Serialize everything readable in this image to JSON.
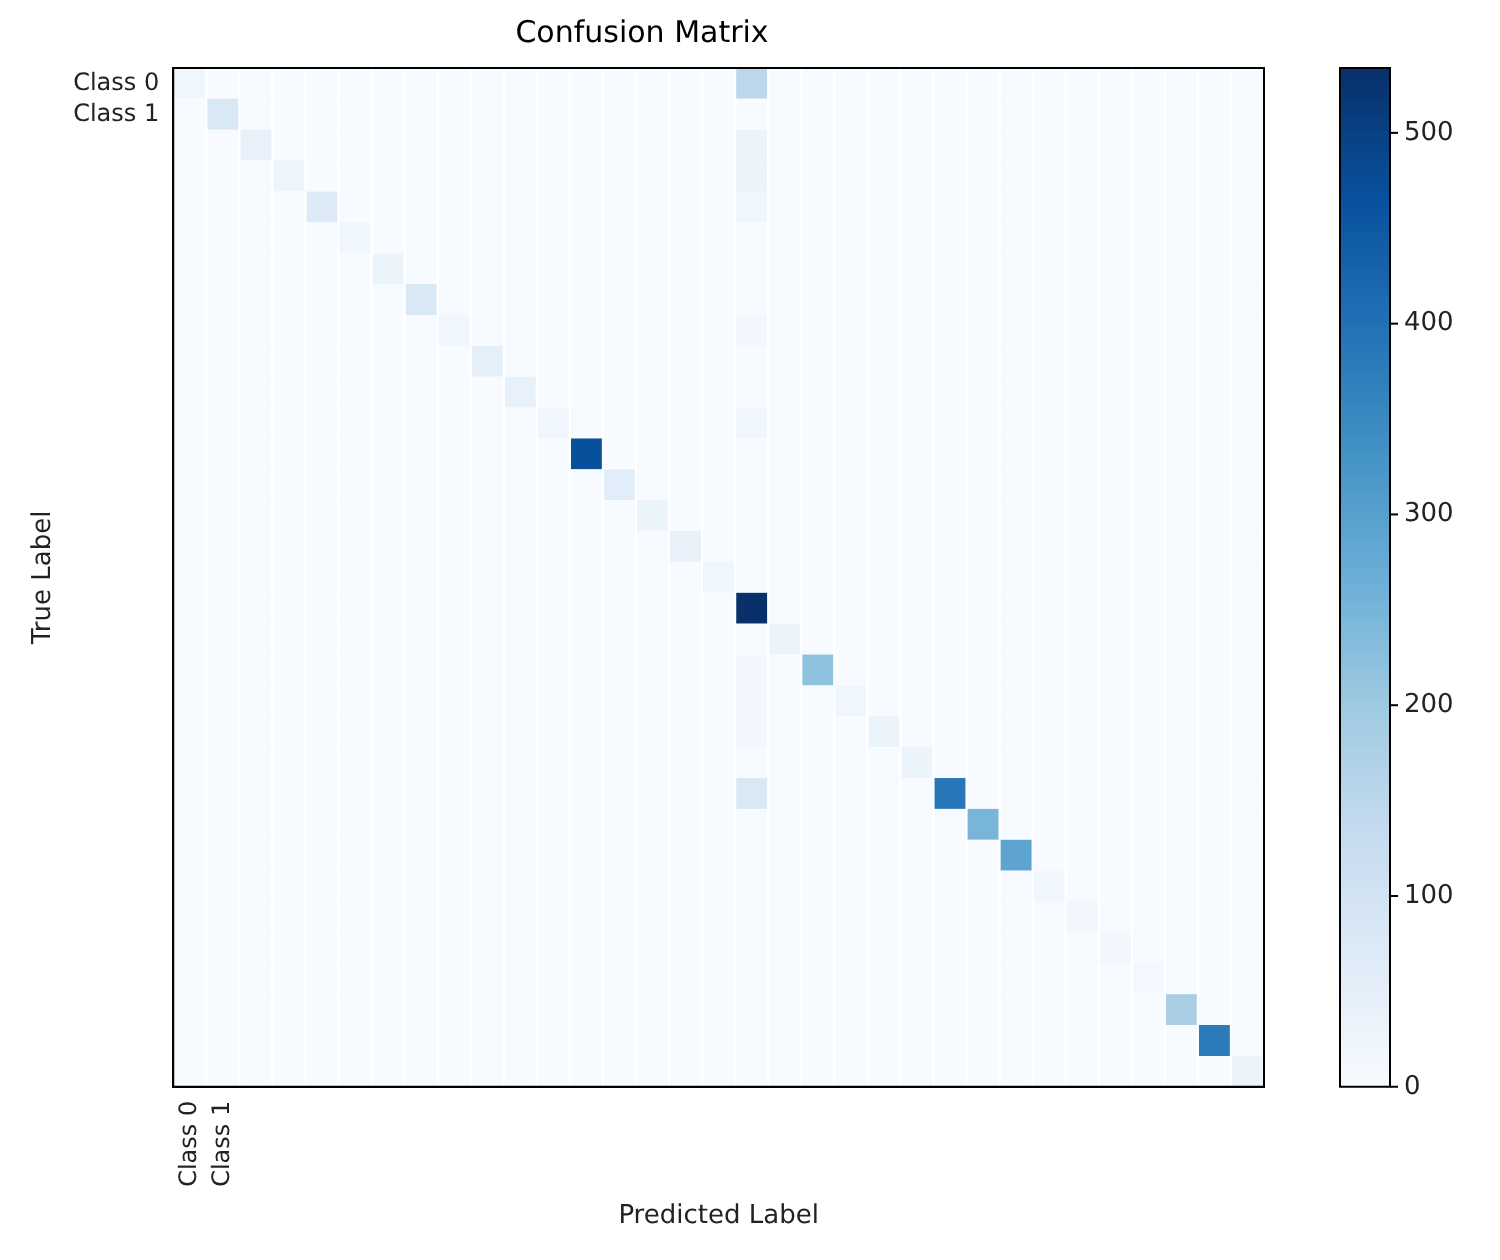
{
  "chart_data": {
    "type": "heatmap",
    "title": "Confusion Matrix",
    "xlabel": "Predicted Label",
    "ylabel": "True Label",
    "categories": [
      "Class 0",
      "Class 1",
      null,
      null,
      null,
      null,
      null,
      null,
      null,
      null,
      null,
      null,
      null,
      null,
      null,
      null,
      null,
      null,
      null,
      null,
      null,
      null,
      null,
      null,
      null,
      null,
      null,
      null,
      null,
      null,
      null,
      null,
      null
    ],
    "y_categories": [
      "Class 0",
      "Class 1",
      null,
      null,
      null,
      null,
      null,
      null,
      null,
      null,
      null,
      null,
      null,
      null,
      null,
      null,
      null,
      null,
      null,
      null,
      null,
      null,
      null,
      null,
      null,
      null,
      null,
      null,
      null,
      null,
      null,
      null,
      null
    ],
    "clim": [
      0,
      534
    ],
    "cticks": [
      0,
      100,
      200,
      300,
      400,
      500
    ],
    "cells": [
      [
        20,
        0,
        0,
        0,
        0,
        0,
        0,
        0,
        0,
        0,
        0,
        0,
        0,
        0,
        0,
        0,
        0,
        150,
        0,
        0,
        0,
        0,
        0,
        0,
        0,
        0,
        0,
        0,
        0,
        0,
        0,
        0,
        0
      ],
      [
        0,
        80,
        0,
        0,
        0,
        0,
        0,
        0,
        0,
        0,
        0,
        0,
        0,
        0,
        0,
        0,
        0,
        0,
        0,
        0,
        0,
        0,
        0,
        0,
        0,
        0,
        0,
        0,
        0,
        0,
        0,
        0,
        0
      ],
      [
        0,
        0,
        40,
        0,
        0,
        0,
        0,
        0,
        0,
        0,
        0,
        0,
        0,
        0,
        0,
        0,
        0,
        30,
        0,
        0,
        0,
        0,
        0,
        0,
        0,
        0,
        0,
        0,
        0,
        0,
        0,
        0,
        0
      ],
      [
        0,
        0,
        0,
        25,
        0,
        0,
        0,
        0,
        0,
        0,
        0,
        0,
        0,
        0,
        0,
        0,
        0,
        30,
        0,
        0,
        0,
        0,
        0,
        0,
        0,
        0,
        0,
        0,
        0,
        0,
        0,
        0,
        0
      ],
      [
        0,
        0,
        0,
        0,
        70,
        0,
        0,
        0,
        0,
        0,
        0,
        0,
        0,
        0,
        0,
        0,
        0,
        20,
        0,
        0,
        0,
        0,
        0,
        0,
        0,
        0,
        0,
        0,
        0,
        0,
        0,
        0,
        0
      ],
      [
        0,
        0,
        0,
        0,
        0,
        20,
        0,
        0,
        0,
        0,
        0,
        0,
        0,
        0,
        0,
        0,
        0,
        0,
        0,
        0,
        0,
        0,
        0,
        0,
        0,
        0,
        0,
        0,
        0,
        0,
        0,
        0,
        0
      ],
      [
        0,
        0,
        0,
        0,
        0,
        0,
        30,
        0,
        0,
        0,
        0,
        0,
        0,
        0,
        0,
        0,
        0,
        0,
        0,
        0,
        0,
        0,
        0,
        0,
        0,
        0,
        0,
        0,
        0,
        0,
        0,
        0,
        0
      ],
      [
        0,
        0,
        0,
        0,
        0,
        0,
        0,
        80,
        0,
        0,
        0,
        0,
        0,
        0,
        0,
        0,
        0,
        0,
        0,
        0,
        0,
        0,
        0,
        0,
        0,
        0,
        0,
        0,
        0,
        0,
        0,
        0,
        0
      ],
      [
        0,
        0,
        0,
        0,
        0,
        0,
        0,
        0,
        20,
        0,
        0,
        0,
        0,
        0,
        0,
        0,
        0,
        15,
        0,
        0,
        0,
        0,
        0,
        0,
        0,
        0,
        0,
        0,
        0,
        0,
        0,
        0,
        0
      ],
      [
        0,
        0,
        0,
        0,
        0,
        0,
        0,
        0,
        0,
        50,
        0,
        0,
        0,
        0,
        0,
        0,
        0,
        0,
        0,
        0,
        0,
        0,
        0,
        0,
        0,
        0,
        0,
        0,
        0,
        0,
        0,
        0,
        0
      ],
      [
        0,
        0,
        0,
        0,
        0,
        0,
        0,
        0,
        0,
        0,
        40,
        0,
        0,
        0,
        0,
        0,
        0,
        0,
        0,
        0,
        0,
        0,
        0,
        0,
        0,
        0,
        0,
        0,
        0,
        0,
        0,
        0,
        0
      ],
      [
        0,
        0,
        0,
        0,
        0,
        0,
        0,
        0,
        0,
        0,
        0,
        20,
        0,
        0,
        0,
        0,
        0,
        20,
        0,
        0,
        0,
        0,
        0,
        0,
        0,
        0,
        0,
        0,
        0,
        0,
        0,
        0,
        0
      ],
      [
        0,
        0,
        0,
        0,
        0,
        0,
        0,
        0,
        0,
        0,
        0,
        0,
        470,
        0,
        0,
        0,
        0,
        0,
        0,
        0,
        0,
        0,
        0,
        0,
        0,
        0,
        0,
        0,
        0,
        0,
        0,
        0,
        0
      ],
      [
        0,
        0,
        0,
        0,
        0,
        0,
        0,
        0,
        0,
        0,
        0,
        0,
        0,
        60,
        0,
        0,
        0,
        0,
        0,
        0,
        0,
        0,
        0,
        0,
        0,
        0,
        0,
        0,
        0,
        0,
        0,
        0,
        0
      ],
      [
        0,
        0,
        0,
        0,
        0,
        0,
        0,
        0,
        0,
        0,
        0,
        0,
        0,
        0,
        30,
        0,
        0,
        0,
        0,
        0,
        0,
        0,
        0,
        0,
        0,
        0,
        0,
        0,
        0,
        0,
        0,
        0,
        0
      ],
      [
        0,
        0,
        0,
        0,
        0,
        0,
        0,
        0,
        0,
        0,
        0,
        0,
        0,
        0,
        0,
        40,
        0,
        0,
        0,
        0,
        0,
        0,
        0,
        0,
        0,
        0,
        0,
        0,
        0,
        0,
        0,
        0,
        0
      ],
      [
        0,
        0,
        0,
        0,
        0,
        0,
        0,
        0,
        0,
        0,
        0,
        0,
        0,
        0,
        0,
        0,
        20,
        0,
        0,
        0,
        0,
        0,
        0,
        0,
        0,
        0,
        0,
        0,
        0,
        0,
        0,
        0,
        0
      ],
      [
        0,
        0,
        0,
        0,
        0,
        0,
        0,
        0,
        0,
        0,
        0,
        0,
        0,
        0,
        0,
        0,
        0,
        534,
        0,
        0,
        0,
        0,
        0,
        0,
        0,
        0,
        0,
        0,
        0,
        0,
        0,
        0,
        0
      ],
      [
        0,
        0,
        0,
        0,
        0,
        0,
        0,
        0,
        0,
        0,
        0,
        0,
        0,
        0,
        0,
        0,
        0,
        0,
        30,
        0,
        0,
        0,
        0,
        0,
        0,
        0,
        0,
        0,
        0,
        0,
        0,
        0,
        0
      ],
      [
        0,
        0,
        0,
        0,
        0,
        0,
        0,
        0,
        0,
        0,
        0,
        0,
        0,
        0,
        0,
        0,
        0,
        15,
        0,
        220,
        0,
        0,
        0,
        0,
        0,
        0,
        0,
        0,
        0,
        0,
        0,
        0,
        0
      ],
      [
        0,
        0,
        0,
        0,
        0,
        0,
        0,
        0,
        0,
        0,
        0,
        0,
        0,
        0,
        0,
        0,
        0,
        15,
        0,
        0,
        20,
        0,
        0,
        0,
        0,
        0,
        0,
        0,
        0,
        0,
        0,
        0,
        0
      ],
      [
        0,
        0,
        0,
        0,
        0,
        0,
        0,
        0,
        0,
        0,
        0,
        0,
        0,
        0,
        0,
        0,
        0,
        15,
        0,
        0,
        0,
        30,
        0,
        0,
        0,
        0,
        0,
        0,
        0,
        0,
        0,
        0,
        0
      ],
      [
        0,
        0,
        0,
        0,
        0,
        0,
        0,
        0,
        0,
        0,
        0,
        0,
        0,
        0,
        0,
        0,
        0,
        0,
        0,
        0,
        0,
        0,
        30,
        0,
        0,
        0,
        0,
        0,
        0,
        0,
        0,
        0,
        0
      ],
      [
        0,
        0,
        0,
        0,
        0,
        0,
        0,
        0,
        0,
        0,
        0,
        0,
        0,
        0,
        0,
        0,
        0,
        80,
        0,
        0,
        0,
        0,
        0,
        390,
        0,
        0,
        0,
        0,
        0,
        0,
        0,
        0,
        0
      ],
      [
        0,
        0,
        0,
        0,
        0,
        0,
        0,
        0,
        0,
        0,
        0,
        0,
        0,
        0,
        0,
        0,
        0,
        0,
        0,
        0,
        0,
        0,
        0,
        0,
        250,
        0,
        0,
        0,
        0,
        0,
        0,
        0,
        0
      ],
      [
        0,
        0,
        0,
        0,
        0,
        0,
        0,
        0,
        0,
        0,
        0,
        0,
        0,
        0,
        0,
        0,
        0,
        0,
        0,
        0,
        0,
        0,
        0,
        0,
        0,
        290,
        0,
        0,
        0,
        0,
        0,
        0,
        0
      ],
      [
        0,
        0,
        0,
        0,
        0,
        0,
        0,
        0,
        0,
        0,
        0,
        0,
        0,
        0,
        0,
        0,
        0,
        0,
        0,
        0,
        0,
        0,
        0,
        0,
        0,
        0,
        20,
        0,
        0,
        0,
        0,
        0,
        0
      ],
      [
        0,
        0,
        0,
        0,
        0,
        0,
        0,
        0,
        0,
        0,
        0,
        0,
        0,
        0,
        0,
        0,
        0,
        0,
        0,
        0,
        0,
        0,
        0,
        0,
        0,
        0,
        0,
        15,
        0,
        0,
        0,
        0,
        0
      ],
      [
        0,
        0,
        0,
        0,
        0,
        0,
        0,
        0,
        0,
        0,
        0,
        0,
        0,
        0,
        0,
        0,
        0,
        0,
        0,
        0,
        0,
        0,
        0,
        0,
        0,
        0,
        0,
        0,
        15,
        0,
        0,
        0,
        0
      ],
      [
        0,
        0,
        0,
        0,
        0,
        0,
        0,
        0,
        0,
        0,
        0,
        0,
        0,
        0,
        0,
        0,
        0,
        0,
        0,
        0,
        0,
        0,
        0,
        0,
        0,
        0,
        0,
        0,
        0,
        10,
        0,
        0,
        0
      ],
      [
        0,
        0,
        0,
        0,
        0,
        0,
        0,
        0,
        0,
        0,
        0,
        0,
        0,
        0,
        0,
        0,
        0,
        0,
        0,
        0,
        0,
        0,
        0,
        0,
        0,
        0,
        0,
        0,
        0,
        0,
        180,
        0,
        0
      ],
      [
        0,
        0,
        0,
        0,
        0,
        0,
        0,
        0,
        0,
        0,
        0,
        0,
        0,
        0,
        0,
        0,
        0,
        0,
        0,
        0,
        0,
        0,
        0,
        0,
        0,
        0,
        0,
        0,
        0,
        0,
        0,
        380,
        0
      ],
      [
        0,
        0,
        0,
        0,
        0,
        0,
        0,
        0,
        0,
        0,
        0,
        0,
        0,
        0,
        0,
        0,
        0,
        0,
        0,
        0,
        0,
        0,
        0,
        0,
        0,
        0,
        0,
        0,
        0,
        0,
        0,
        0,
        30
      ]
    ]
  }
}
